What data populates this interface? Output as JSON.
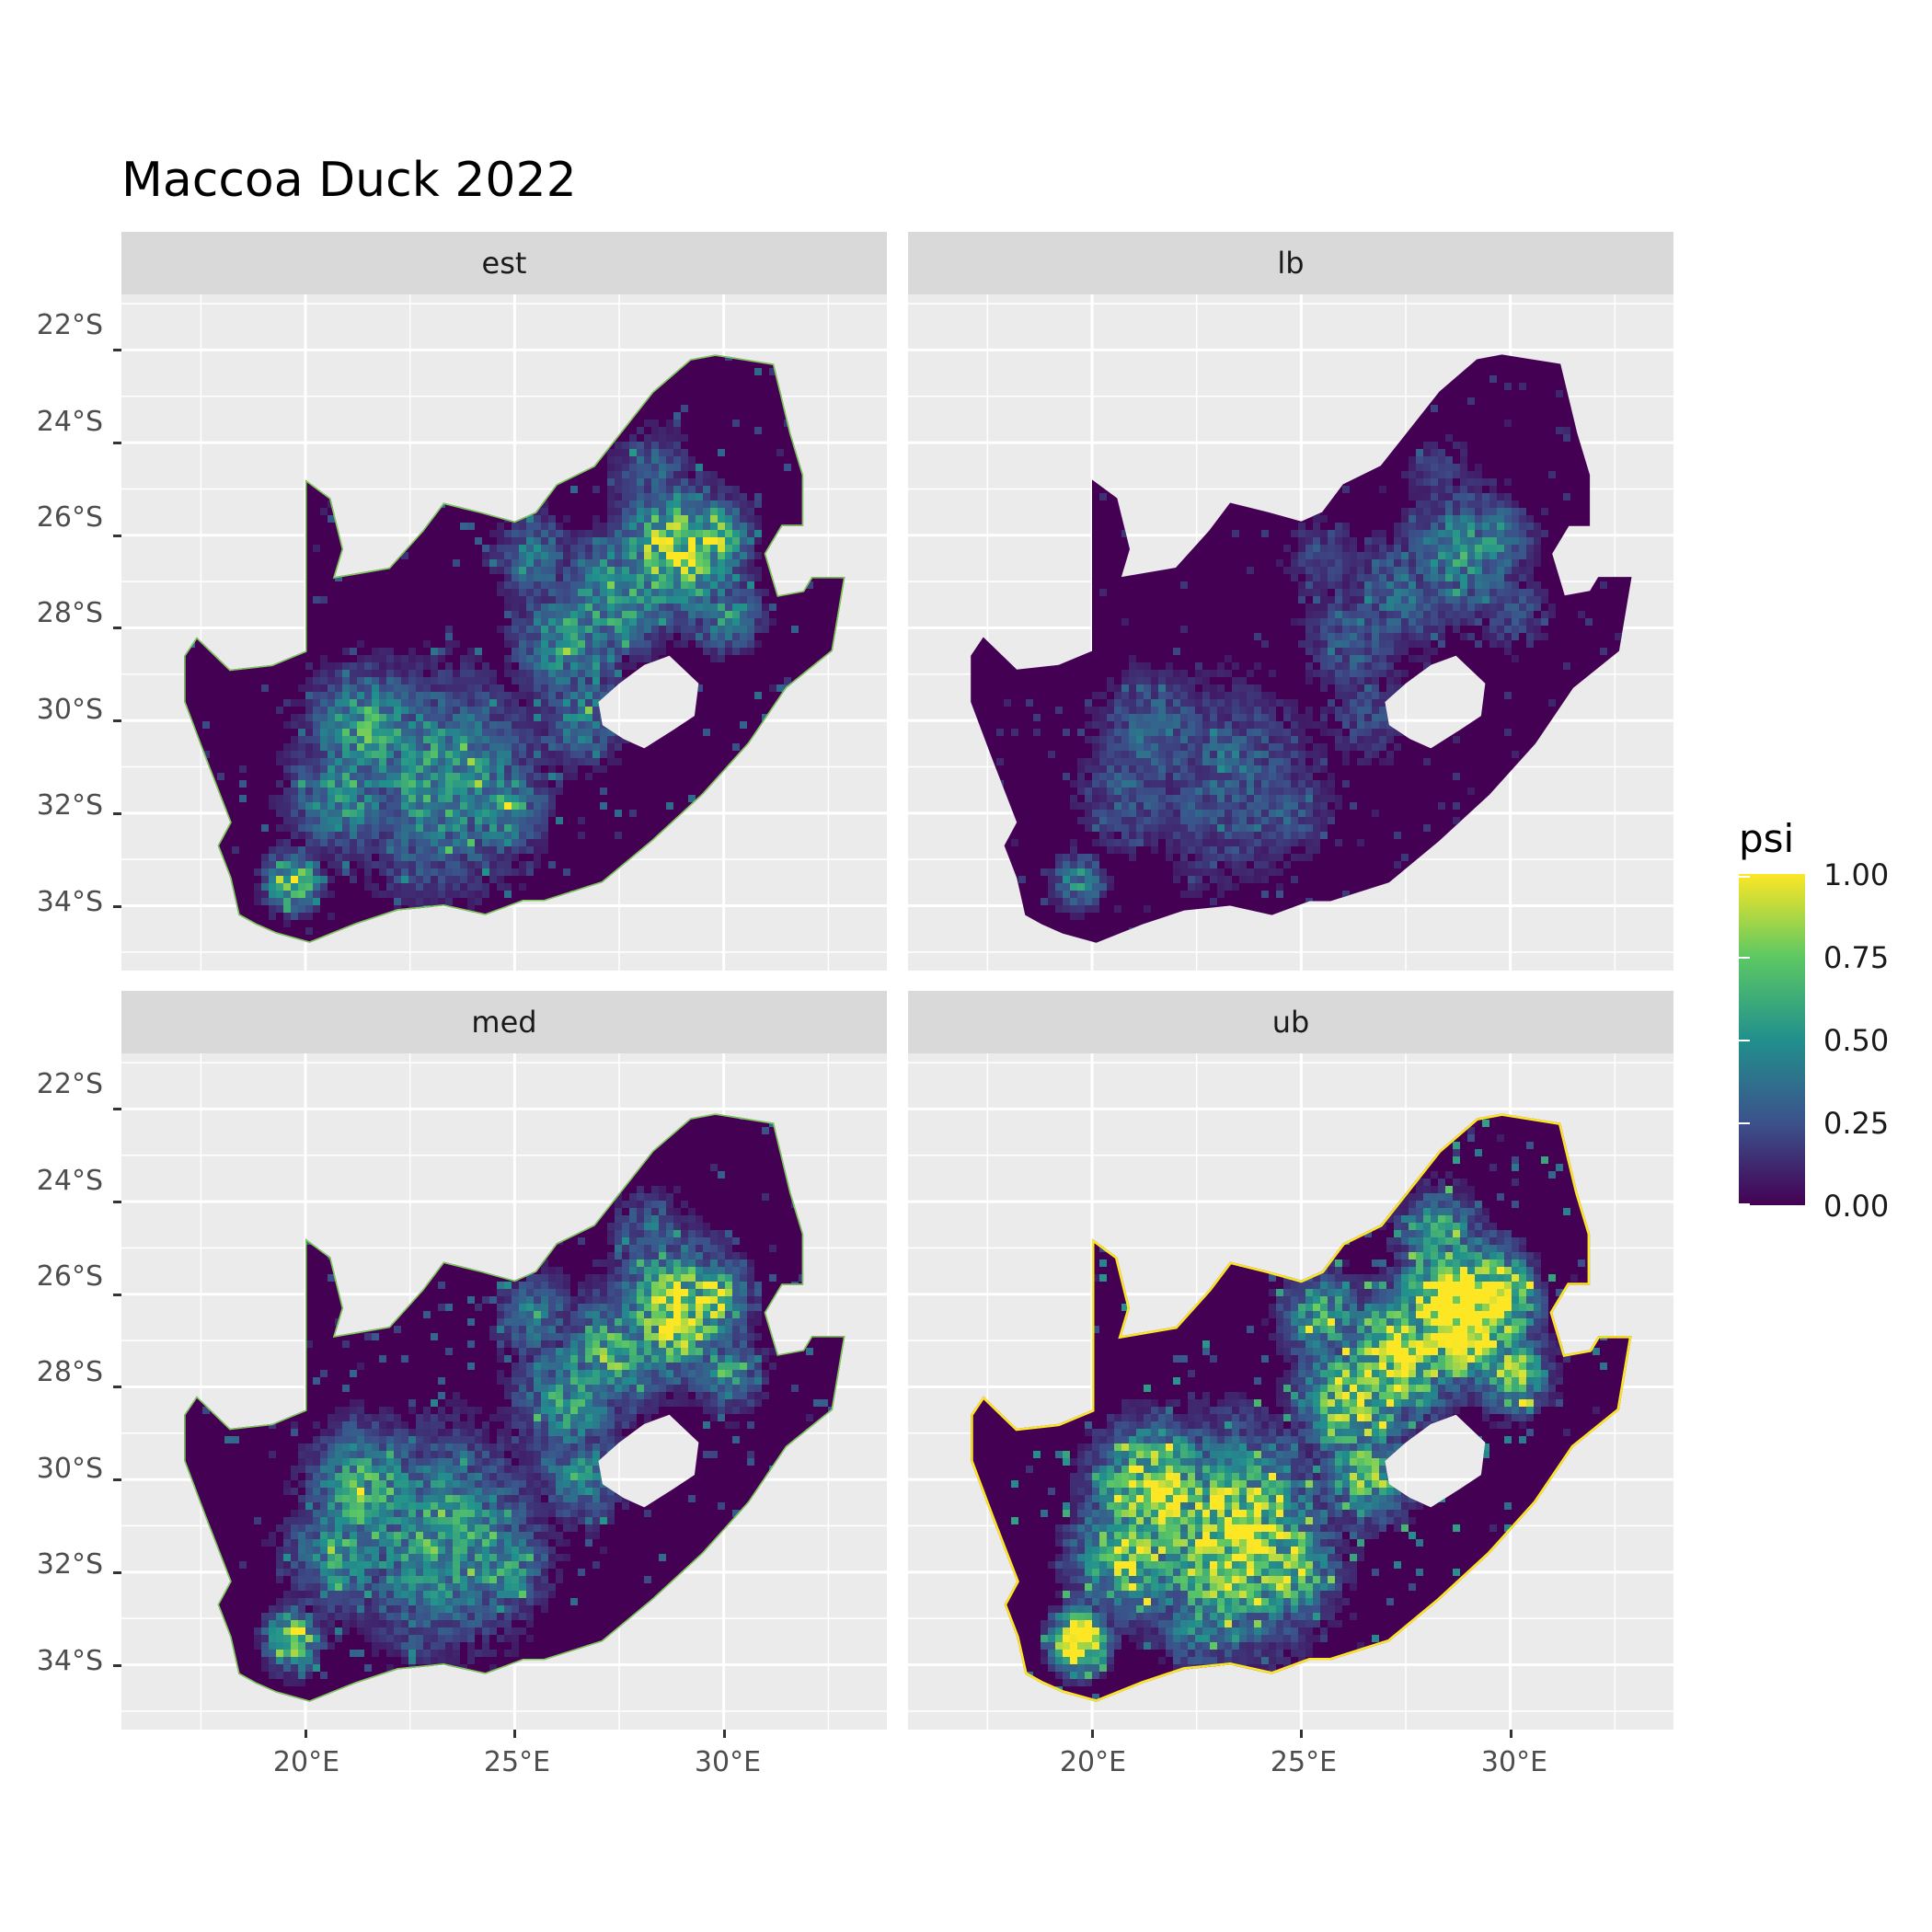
{
  "title": "Maccoa Duck 2022",
  "facets": [
    "est",
    "lb",
    "med",
    "ub"
  ],
  "axes": {
    "x_ticks": [
      "20°E",
      "25°E",
      "30°E"
    ],
    "y_ticks": [
      "22°S",
      "24°S",
      "26°S",
      "28°S",
      "30°S",
      "32°S",
      "34°S"
    ]
  },
  "legend": {
    "title": "psi",
    "labels": [
      "1.00",
      "0.75",
      "0.50",
      "0.25",
      "0.00"
    ],
    "colors": [
      "#fde725",
      "#5dc863",
      "#21908d",
      "#3b528b",
      "#440154"
    ]
  },
  "map_colors": {
    "panel_bg": "#ebebeb",
    "grid": "#ffffff",
    "land_base": "#440154"
  }
}
